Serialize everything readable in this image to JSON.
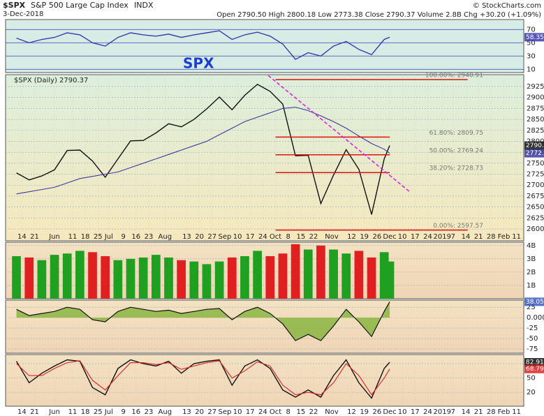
{
  "header": {
    "symbol": "$SPX",
    "name": "S&P 500 Large Cap Index",
    "exchange": "INDX",
    "date": "3-Dec-2018",
    "quote": "Open 2790.50 High 2800.18 Low 2773.38 Close 2790.37 Volume 2.8B Chg +30.20 (+1.09%)",
    "credit": "© StockCharts.com"
  },
  "chart_data": [
    {
      "type": "line",
      "annotation": "SPX",
      "x": [
        "2018-05-11",
        "2018-05-18",
        "2018-05-25",
        "2018-06-01",
        "2018-06-08",
        "2018-06-15",
        "2018-06-22",
        "2018-06-29",
        "2018-07-06",
        "2018-07-13",
        "2018-07-20",
        "2018-07-27",
        "2018-08-03",
        "2018-08-10",
        "2018-08-17",
        "2018-08-24",
        "2018-08-31",
        "2018-09-07",
        "2018-09-14",
        "2018-09-21",
        "2018-09-28",
        "2018-10-05",
        "2018-10-12",
        "2018-10-19",
        "2018-10-26",
        "2018-11-02",
        "2018-11-09",
        "2018-11-16",
        "2018-11-23",
        "2018-11-30",
        "2018-12-03"
      ],
      "series": [
        {
          "color": "#3b3bb0",
          "values": [
            57,
            50,
            55,
            58,
            65,
            62,
            50,
            45,
            58,
            65,
            62,
            60,
            63,
            58,
            62,
            65,
            68,
            55,
            62,
            66,
            60,
            48,
            25,
            35,
            30,
            45,
            52,
            40,
            32,
            55,
            58.35
          ],
          "end_label": "58.35"
        }
      ],
      "xlim": [
        "2018-05-05",
        "2019-02-15"
      ],
      "ylim": [
        5,
        85
      ],
      "yticks": [
        10,
        30,
        50,
        70
      ]
    },
    {
      "type": "line",
      "legend": "$SPX (Daily) 2790.37",
      "x": [
        "2018-05-11",
        "2018-05-18",
        "2018-05-25",
        "2018-06-01",
        "2018-06-08",
        "2018-06-15",
        "2018-06-22",
        "2018-06-29",
        "2018-07-06",
        "2018-07-13",
        "2018-07-20",
        "2018-07-27",
        "2018-08-03",
        "2018-08-10",
        "2018-08-17",
        "2018-08-24",
        "2018-08-31",
        "2018-09-07",
        "2018-09-14",
        "2018-09-21",
        "2018-09-28",
        "2018-10-05",
        "2018-10-12",
        "2018-10-19",
        "2018-10-26",
        "2018-11-02",
        "2018-11-09",
        "2018-11-16",
        "2018-11-23",
        "2018-11-30",
        "2018-12-03"
      ],
      "series": [
        {
          "color": "#111111",
          "values": [
            2728,
            2712,
            2721,
            2735,
            2779,
            2780,
            2755,
            2718,
            2760,
            2801,
            2802,
            2819,
            2840,
            2833,
            2850,
            2874,
            2901,
            2872,
            2905,
            2930,
            2914,
            2885,
            2767,
            2768,
            2658,
            2723,
            2781,
            2736,
            2633,
            2760,
            2790.37
          ],
          "end_label": "2790.37"
        },
        {
          "color": "#3a3aa0",
          "values": [
            2680,
            2685,
            2690,
            2695,
            2705,
            2715,
            2720,
            2725,
            2730,
            2740,
            2750,
            2760,
            2770,
            2780,
            2790,
            2800,
            2815,
            2830,
            2845,
            2855,
            2865,
            2875,
            2878,
            2870,
            2858,
            2845,
            2830,
            2812,
            2795,
            2782,
            2772.7
          ],
          "end_label": "2772.7"
        }
      ],
      "levels": [
        {
          "value": 2940.91,
          "label": "100.00%: 2940.91",
          "to": "2019-01-15"
        },
        {
          "value": 2809.75,
          "label": "61.80%: 2809.75",
          "to": "2018-12-03"
        },
        {
          "value": 2769.24,
          "label": "50.00%: 2769.24",
          "to": "2018-12-03"
        },
        {
          "value": 2728.73,
          "label": "38.20%: 2728.73",
          "to": "2018-12-03"
        },
        {
          "value": 2597.57,
          "label": "0.00%: 2597.57",
          "to": "2019-01-15"
        }
      ],
      "levels_from": "2018-10-01",
      "level_color": "#e01010",
      "trendline": {
        "color": "#e020e0",
        "x": [
          "2018-09-27",
          "2018-12-14"
        ],
        "values": [
          2950,
          2685
        ]
      },
      "xlim": [
        "2018-05-05",
        "2019-02-15"
      ],
      "ylim": [
        2573,
        2952
      ],
      "yticks": [
        2600,
        2625,
        2650,
        2675,
        2700,
        2725,
        2750,
        2775,
        2800,
        2825,
        2850,
        2875,
        2900,
        2925
      ],
      "xticks": [
        {
          "value": "2018-05-14",
          "label": "14"
        },
        {
          "value": "2018-05-21",
          "label": "21"
        },
        {
          "value": "2018-06-01",
          "label": "Jun"
        },
        {
          "value": "2018-06-11",
          "label": "11"
        },
        {
          "value": "2018-06-18",
          "label": "18"
        },
        {
          "value": "2018-06-25",
          "label": "25"
        },
        {
          "value": "2018-07-01",
          "label": "Jul"
        },
        {
          "value": "2018-07-09",
          "label": "9"
        },
        {
          "value": "2018-07-16",
          "label": "16"
        },
        {
          "value": "2018-07-23",
          "label": "23"
        },
        {
          "value": "2018-08-01",
          "label": "Aug"
        },
        {
          "value": "2018-08-13",
          "label": "13"
        },
        {
          "value": "2018-08-20",
          "label": "20"
        },
        {
          "value": "2018-08-27",
          "label": "27"
        },
        {
          "value": "2018-09-03",
          "label": "Sep"
        },
        {
          "value": "2018-09-10",
          "label": "10"
        },
        {
          "value": "2018-09-17",
          "label": "17"
        },
        {
          "value": "2018-09-24",
          "label": "24"
        },
        {
          "value": "2018-10-01",
          "label": "Oct"
        },
        {
          "value": "2018-10-08",
          "label": "8"
        },
        {
          "value": "2018-10-15",
          "label": "15"
        },
        {
          "value": "2018-10-22",
          "label": "22"
        },
        {
          "value": "2018-11-01",
          "label": "Nov"
        },
        {
          "value": "2018-11-12",
          "label": "12"
        },
        {
          "value": "2018-11-19",
          "label": "19"
        },
        {
          "value": "2018-11-26",
          "label": "26"
        },
        {
          "value": "2018-12-03",
          "label": "Dec"
        },
        {
          "value": "2018-12-10",
          "label": "10"
        },
        {
          "value": "2018-12-17",
          "label": "17"
        },
        {
          "value": "2018-12-24",
          "label": "24"
        },
        {
          "value": "2019-01-01",
          "label": "2019"
        },
        {
          "value": "2019-01-07",
          "label": "7"
        },
        {
          "value": "2019-01-14",
          "label": "14"
        },
        {
          "value": "2019-01-21",
          "label": "21"
        },
        {
          "value": "2019-01-28",
          "label": "28"
        },
        {
          "value": "2019-02-04",
          "label": "Feb"
        },
        {
          "value": "2019-02-11",
          "label": "11"
        }
      ]
    },
    {
      "type": "bar",
      "x": [
        "2018-05-11",
        "2018-05-18",
        "2018-05-25",
        "2018-06-01",
        "2018-06-08",
        "2018-06-15",
        "2018-06-22",
        "2018-06-29",
        "2018-07-06",
        "2018-07-13",
        "2018-07-20",
        "2018-07-27",
        "2018-08-03",
        "2018-08-10",
        "2018-08-17",
        "2018-08-24",
        "2018-08-31",
        "2018-09-07",
        "2018-09-14",
        "2018-09-21",
        "2018-09-28",
        "2018-10-05",
        "2018-10-12",
        "2018-10-19",
        "2018-10-26",
        "2018-11-02",
        "2018-11-09",
        "2018-11-16",
        "2018-11-23",
        "2018-11-30",
        "2018-12-03"
      ],
      "values": [
        3.2,
        3.1,
        2.9,
        3.3,
        3.4,
        3.6,
        3.5,
        3.2,
        2.9,
        3.0,
        3.1,
        3.3,
        3.1,
        2.9,
        2.8,
        2.6,
        2.8,
        3.1,
        3.2,
        3.6,
        3.2,
        3.4,
        4.1,
        3.7,
        4.0,
        3.7,
        3.4,
        3.6,
        3.1,
        3.5,
        2.8
      ],
      "colors": [
        "#20a020",
        "#e02020",
        "#20a020",
        "#20a020",
        "#20a020",
        "#20a020",
        "#e02020",
        "#e02020",
        "#20a020",
        "#20a020",
        "#20a020",
        "#20a020",
        "#20a020",
        "#e02020",
        "#20a020",
        "#20a020",
        "#20a020",
        "#e02020",
        "#20a020",
        "#20a020",
        "#e02020",
        "#e02020",
        "#e02020",
        "#20a020",
        "#e02020",
        "#20a020",
        "#20a020",
        "#e02020",
        "#e02020",
        "#20a020",
        "#20a020"
      ],
      "xlim": [
        "2018-05-05",
        "2019-02-15"
      ],
      "ylim": [
        0,
        4.25
      ],
      "yticks": [
        {
          "value": 1,
          "label": "1B"
        },
        {
          "value": 2,
          "label": "2B"
        },
        {
          "value": 3,
          "label": "3B"
        },
        {
          "value": 4,
          "label": "4B"
        }
      ]
    },
    {
      "type": "area",
      "color": "#7cb030",
      "line_color": "#111111",
      "x": [
        "2018-05-11",
        "2018-05-18",
        "2018-05-25",
        "2018-06-01",
        "2018-06-08",
        "2018-06-15",
        "2018-06-22",
        "2018-06-29",
        "2018-07-06",
        "2018-07-13",
        "2018-07-20",
        "2018-07-27",
        "2018-08-03",
        "2018-08-10",
        "2018-08-17",
        "2018-08-24",
        "2018-08-31",
        "2018-09-07",
        "2018-09-14",
        "2018-09-21",
        "2018-09-28",
        "2018-10-05",
        "2018-10-12",
        "2018-10-19",
        "2018-10-26",
        "2018-11-02",
        "2018-11-09",
        "2018-11-16",
        "2018-11-23",
        "2018-11-30",
        "2018-12-03"
      ],
      "values": [
        20,
        5,
        10,
        15,
        25,
        20,
        -5,
        -10,
        15,
        25,
        20,
        15,
        18,
        10,
        15,
        20,
        22,
        -5,
        15,
        25,
        10,
        -15,
        -55,
        -40,
        -55,
        -20,
        20,
        -10,
        -45,
        15,
        38.05
      ],
      "end_label": "38.05",
      "xlim": [
        "2018-05-05",
        "2019-02-15"
      ],
      "ylim": [
        -85,
        42
      ],
      "yticks": [
        -75,
        -50,
        -25,
        {
          "value": 0,
          "label": "0.000"
        },
        25
      ]
    },
    {
      "type": "line",
      "x": [
        "2018-05-11",
        "2018-05-18",
        "2018-05-25",
        "2018-06-01",
        "2018-06-08",
        "2018-06-15",
        "2018-06-22",
        "2018-06-29",
        "2018-07-06",
        "2018-07-13",
        "2018-07-20",
        "2018-07-27",
        "2018-08-03",
        "2018-08-10",
        "2018-08-17",
        "2018-08-24",
        "2018-08-31",
        "2018-09-07",
        "2018-09-14",
        "2018-09-21",
        "2018-09-28",
        "2018-10-05",
        "2018-10-12",
        "2018-10-19",
        "2018-10-26",
        "2018-11-02",
        "2018-11-09",
        "2018-11-16",
        "2018-11-23",
        "2018-11-30",
        "2018-12-03"
      ],
      "series": [
        {
          "color": "#111111",
          "values": [
            85,
            40,
            60,
            75,
            88,
            85,
            30,
            15,
            70,
            88,
            80,
            75,
            85,
            60,
            80,
            85,
            88,
            35,
            75,
            88,
            70,
            25,
            10,
            25,
            10,
            55,
            88,
            40,
            8,
            70,
            82.91
          ],
          "end_label": "82.91"
        },
        {
          "color": "#e02020",
          "values": [
            80,
            55,
            55,
            70,
            82,
            86,
            45,
            25,
            55,
            82,
            82,
            78,
            82,
            68,
            75,
            82,
            86,
            50,
            65,
            84,
            75,
            35,
            15,
            20,
            15,
            40,
            80,
            55,
            15,
            50,
            68.79
          ],
          "end_label": "68.79"
        }
      ],
      "xlim": [
        "2018-05-05",
        "2019-02-15"
      ],
      "ylim": [
        -9,
        99
      ],
      "yticks": [
        20,
        50,
        80
      ],
      "xticks": [
        {
          "value": "2018-05-14",
          "label": "14"
        },
        {
          "value": "2018-05-21",
          "label": "21"
        },
        {
          "value": "2018-06-01",
          "label": "Jun"
        },
        {
          "value": "2018-06-11",
          "label": "11"
        },
        {
          "value": "2018-06-18",
          "label": "18"
        },
        {
          "value": "2018-06-25",
          "label": "25"
        },
        {
          "value": "2018-07-01",
          "label": "Jul"
        },
        {
          "value": "2018-07-09",
          "label": "9"
        },
        {
          "value": "2018-07-16",
          "label": "16"
        },
        {
          "value": "2018-07-23",
          "label": "23"
        },
        {
          "value": "2018-08-01",
          "label": "Aug"
        },
        {
          "value": "2018-08-13",
          "label": "13"
        },
        {
          "value": "2018-08-20",
          "label": "20"
        },
        {
          "value": "2018-08-27",
          "label": "27"
        },
        {
          "value": "2018-09-03",
          "label": "Sep"
        },
        {
          "value": "2018-09-10",
          "label": "10"
        },
        {
          "value": "2018-09-17",
          "label": "17"
        },
        {
          "value": "2018-09-24",
          "label": "24"
        },
        {
          "value": "2018-10-01",
          "label": "Oct"
        },
        {
          "value": "2018-10-08",
          "label": "8"
        },
        {
          "value": "2018-10-15",
          "label": "15"
        },
        {
          "value": "2018-10-22",
          "label": "22"
        },
        {
          "value": "2018-11-01",
          "label": "Nov"
        },
        {
          "value": "2018-11-12",
          "label": "12"
        },
        {
          "value": "2018-11-19",
          "label": "19"
        },
        {
          "value": "2018-11-26",
          "label": "26"
        },
        {
          "value": "2018-12-03",
          "label": "Dec"
        },
        {
          "value": "2018-12-10",
          "label": "10"
        },
        {
          "value": "2018-12-17",
          "label": "17"
        },
        {
          "value": "2018-12-24",
          "label": "24"
        },
        {
          "value": "2019-01-01",
          "label": "2019"
        },
        {
          "value": "2019-01-07",
          "label": "7"
        },
        {
          "value": "2019-01-14",
          "label": "14"
        },
        {
          "value": "2019-01-21",
          "label": "21"
        },
        {
          "value": "2019-01-28",
          "label": "28"
        },
        {
          "value": "2019-02-04",
          "label": "Feb"
        },
        {
          "value": "2019-02-11",
          "label": "11"
        }
      ]
    }
  ]
}
